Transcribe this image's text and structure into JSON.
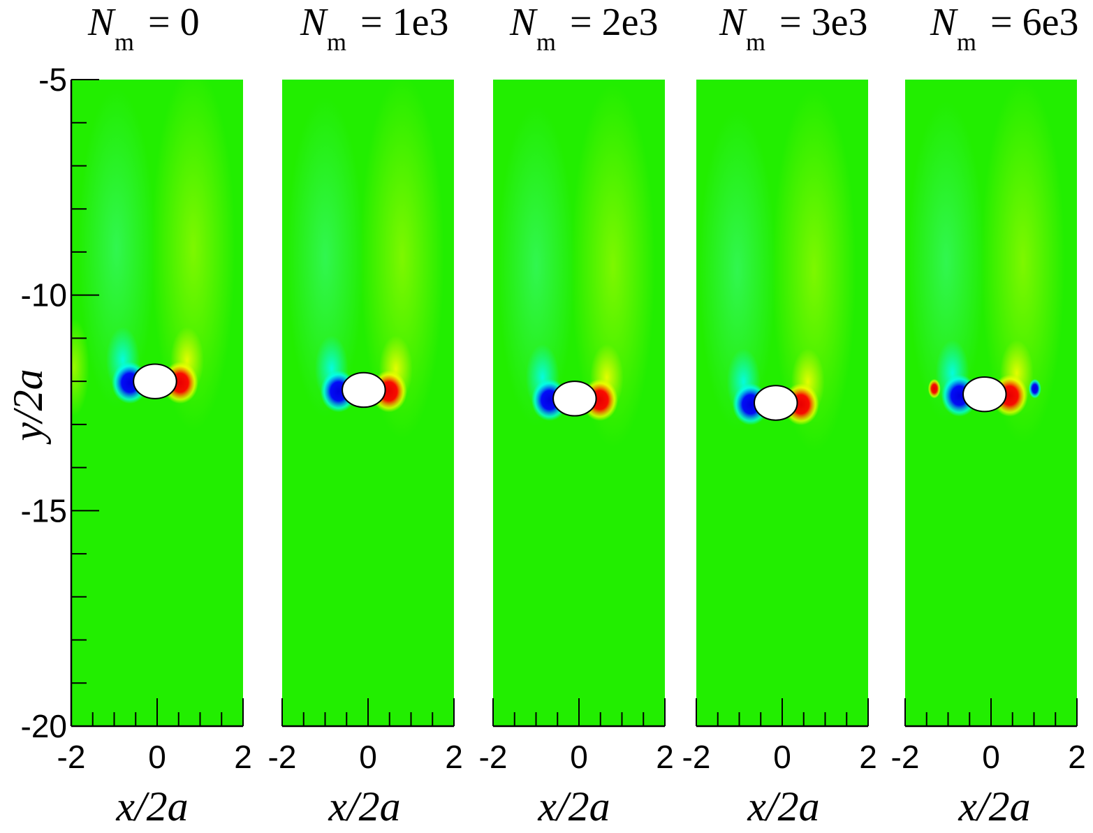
{
  "chart_data": {
    "type": "heatmap",
    "ylabel": "y/2a",
    "ylim": [
      -20,
      -5
    ],
    "yticks": [
      -5,
      -10,
      -15,
      -20
    ],
    "y_minor_step": 1,
    "x_minor_step": 0.5,
    "grid": false,
    "colormap": [
      "#0000e0",
      "#00ffff",
      "#00ff00",
      "#ffff00",
      "#ff0000"
    ],
    "background_color": "#22ee00",
    "panels": [
      {
        "title_symbol": "N",
        "title_subscript": "m",
        "title_value": "= 0",
        "xlabel": "x/2a",
        "xlim": [
          -2,
          2
        ],
        "xticks": [
          -2,
          0,
          2
        ],
        "particle": {
          "x": -0.05,
          "y": -12.0,
          "width": 1.0,
          "height": 0.5
        }
      },
      {
        "title_symbol": "N",
        "title_subscript": "m",
        "title_value": "= 1e3",
        "xlabel": "x/2a",
        "xlim": [
          -2,
          2
        ],
        "xticks": [
          -2,
          0,
          2
        ],
        "particle": {
          "x": -0.1,
          "y": -12.2,
          "width": 1.0,
          "height": 0.5
        }
      },
      {
        "title_symbol": "N",
        "title_subscript": "m",
        "title_value": "= 2e3",
        "xlabel": "x/2a",
        "xlim": [
          -2,
          2
        ],
        "xticks": [
          -2,
          0,
          2
        ],
        "particle": {
          "x": -0.1,
          "y": -12.4,
          "width": 1.0,
          "height": 0.5
        }
      },
      {
        "title_symbol": "N",
        "title_subscript": "m",
        "title_value": "= 3e3",
        "xlabel": "x/2a",
        "xlim": [
          -2,
          2
        ],
        "xticks": [
          -2,
          0,
          2
        ],
        "particle": {
          "x": -0.15,
          "y": -12.5,
          "width": 1.0,
          "height": 0.5
        }
      },
      {
        "title_symbol": "N",
        "title_subscript": "m",
        "title_value": "= 6e3",
        "xlabel": "x/2a",
        "xlim": [
          -2,
          2
        ],
        "xticks": [
          -2,
          0,
          2
        ],
        "particle": {
          "x": -0.15,
          "y": -12.3,
          "width": 1.0,
          "height": 0.5
        }
      }
    ]
  }
}
